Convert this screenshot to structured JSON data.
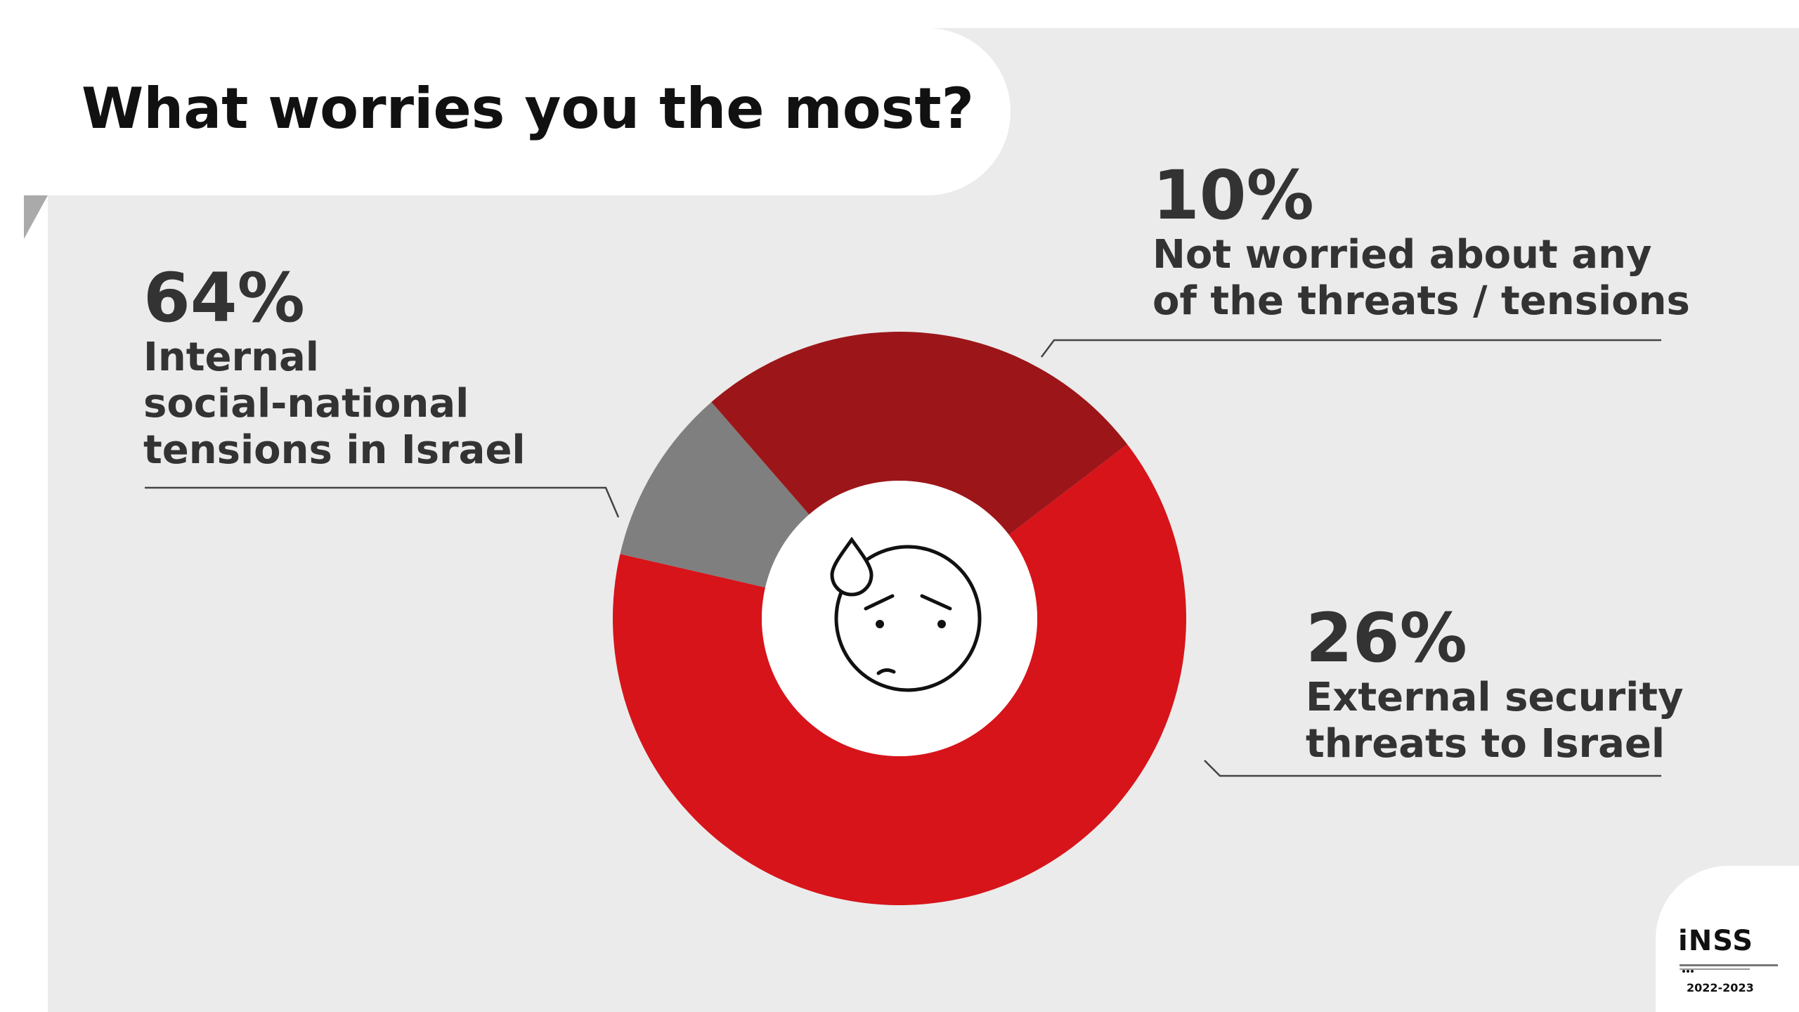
{
  "header": {
    "title": "What worries you the most?"
  },
  "colors": {
    "internal": "#d7141a",
    "external": "#9c1619",
    "not_worried": "#7f7f7f",
    "text": "#333333",
    "background": "#ebebeb"
  },
  "chart_data": {
    "type": "pie",
    "variant": "donut",
    "slices": [
      {
        "name": "Internal social-national tensions in Israel",
        "value": 64,
        "label": "64%",
        "color": "#d7141a"
      },
      {
        "name": "Not worried about any of the threats / tensions",
        "value": 10,
        "label": "10%",
        "color": "#7f7f7f"
      },
      {
        "name": "External security threats to Israel",
        "value": 26,
        "label": "26%",
        "color": "#9c1619"
      }
    ],
    "center_icon": "worried-sweat-face-icon"
  },
  "labels": {
    "internal": {
      "pct": "64%",
      "lines": [
        "Internal",
        "social-national",
        "tensions in Israel"
      ]
    },
    "not_worried": {
      "pct": "10%",
      "lines": [
        "Not worried about any",
        "of the threats / tensions"
      ]
    },
    "external": {
      "pct": "26%",
      "lines": [
        "External security",
        "threats to Israel"
      ]
    }
  },
  "logo": {
    "name": "iNSS",
    "years": "2022-2023",
    "icon": "inss-logo-icon"
  }
}
